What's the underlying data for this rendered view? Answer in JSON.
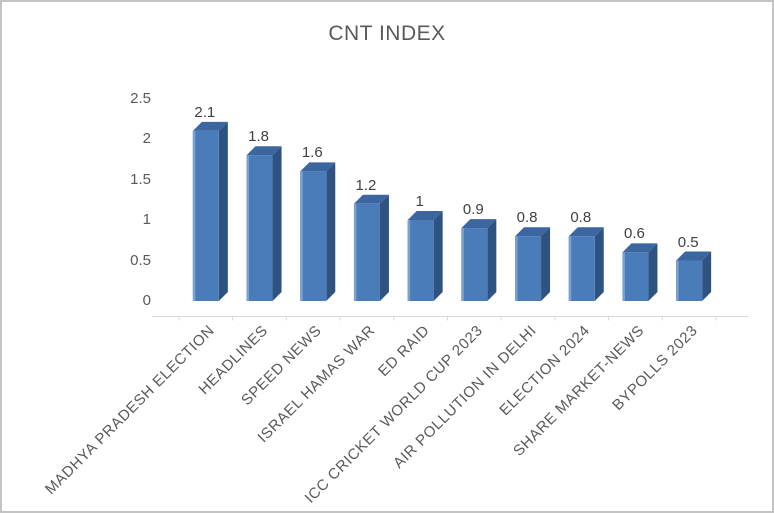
{
  "title": "CNT INDEX",
  "colors": {
    "bar_front": "#4a7cba",
    "bar_side": "#2f5380",
    "bar_top": "#3b66a0",
    "bar_highlight": "#7aa1d3",
    "axis_line": "#d9d9d9",
    "tick_text": "#595959",
    "data_label_text": "#404040",
    "title_text": "#595959",
    "border": "#c3c3c3"
  },
  "chart_data": {
    "type": "bar",
    "style": "3d-column",
    "title": "CNT INDEX",
    "categories": [
      "MADHYA PRADESH ELECTION",
      "HEADLINES",
      "SPEED NEWS",
      "ISRAEL HAMAS WAR",
      "ED RAID",
      "ICC CRICKET WORLD CUP 2023",
      "AIR POLLUTION IN DELHI",
      "ELECTION 2024",
      "SHARE MARKET-NEWS",
      "BYPOLLS 2023"
    ],
    "values": [
      2.1,
      1.8,
      1.6,
      1.2,
      1,
      0.9,
      0.8,
      0.8,
      0.6,
      0.5
    ],
    "data_labels": [
      "2.1",
      "1.8",
      "1.6",
      "1.2",
      "1",
      "0.9",
      "0.8",
      "0.8",
      "0.6",
      "0.5"
    ],
    "y_ticks": [
      "0",
      "0.5",
      "1",
      "1.5",
      "2",
      "2.5"
    ],
    "y_tick_values": [
      0,
      0.5,
      1,
      1.5,
      2,
      2.5
    ],
    "ylim": [
      0,
      2.5
    ],
    "xlabel": "",
    "ylabel": "",
    "grid": false,
    "legend": "none"
  }
}
